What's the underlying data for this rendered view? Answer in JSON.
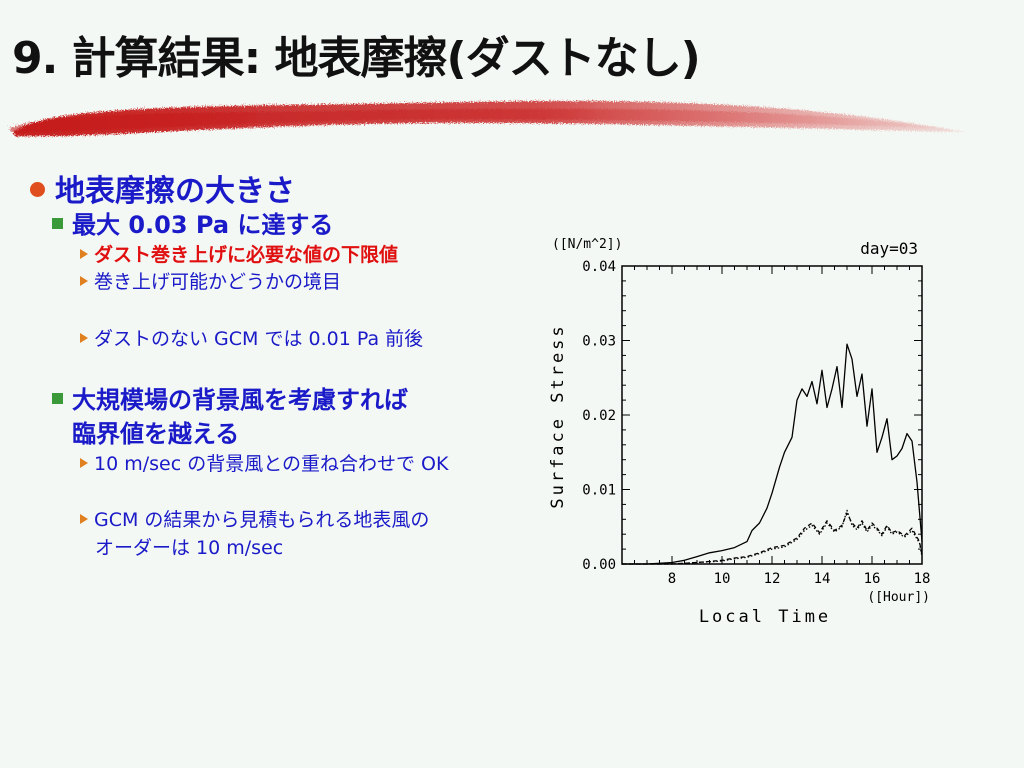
{
  "title": "9. 計算結果: 地表摩擦(ダストなし)",
  "bullets": {
    "main": "地表摩擦の大きさ",
    "sub1": "最大 0.03 Pa に達する",
    "sub1_items": [
      "ダスト巻き上げに必要な値の下限値",
      "巻き上げ可能かどうかの境目",
      "ダストのない GCM では 0.01 Pa 前後"
    ],
    "sub2_line1": "大規模場の背景風を考慮すれば",
    "sub2_line2": "臨界値を越える",
    "sub2_items": [
      "10 m/sec の背景風との重ね合わせで OK",
      "GCM の結果から見積もられる地表風の",
      "オーダーは 10 m/sec"
    ]
  },
  "colors": {
    "title": "#111111",
    "brush": "#c41818",
    "bullet_text": "#1a1ac8",
    "highlight": "#e01010",
    "dot": "#e04d1e",
    "square": "#3a9a3a",
    "triangle": "#e08020"
  },
  "chart_data": {
    "type": "line",
    "xlabel": "Local Time",
    "xunit": "([Hour])",
    "ylabel": "Surface Stress",
    "yunit": "([N/m^2])",
    "annotation": "day=03",
    "xlim": [
      6,
      18
    ],
    "ylim": [
      0,
      0.04
    ],
    "xticks": [
      "8",
      "10",
      "12",
      "14",
      "16",
      "18"
    ],
    "yticks": [
      "0.00",
      "0.01",
      "0.02",
      "0.03",
      "0.04"
    ],
    "series": [
      {
        "style": "solid",
        "x": [
          6,
          7,
          7.5,
          8,
          8.5,
          9,
          9.5,
          10,
          10.5,
          11,
          11.2,
          11.5,
          11.8,
          12,
          12.3,
          12.5,
          12.8,
          13,
          13.2,
          13.4,
          13.6,
          13.8,
          14,
          14.2,
          14.4,
          14.6,
          14.8,
          15,
          15.2,
          15.4,
          15.6,
          15.8,
          16,
          16.2,
          16.4,
          16.6,
          16.8,
          17,
          17.2,
          17.4,
          17.6,
          17.8,
          18
        ],
        "y": [
          0.0,
          0.0,
          0.0001,
          0.0002,
          0.0005,
          0.001,
          0.0015,
          0.0018,
          0.0022,
          0.003,
          0.0045,
          0.0055,
          0.0075,
          0.0095,
          0.013,
          0.015,
          0.017,
          0.022,
          0.0235,
          0.0225,
          0.0245,
          0.0215,
          0.026,
          0.021,
          0.0235,
          0.0265,
          0.021,
          0.0295,
          0.0275,
          0.0225,
          0.0255,
          0.0185,
          0.0235,
          0.015,
          0.017,
          0.0195,
          0.014,
          0.0145,
          0.0155,
          0.0175,
          0.0165,
          0.011,
          0.003
        ]
      },
      {
        "style": "dashed",
        "x": [
          6,
          8,
          9,
          10,
          10.5,
          11,
          11.5,
          12,
          12.5,
          13,
          13.3,
          13.6,
          13.9,
          14.2,
          14.5,
          14.8,
          15,
          15.2,
          15.4,
          15.6,
          15.8,
          16,
          16.2,
          16.4,
          16.6,
          16.8,
          17,
          17.3,
          17.6,
          17.9,
          18
        ],
        "y": [
          0.0,
          0.0,
          0.0002,
          0.0005,
          0.0008,
          0.001,
          0.0015,
          0.0022,
          0.0025,
          0.0035,
          0.0048,
          0.0055,
          0.0042,
          0.0058,
          0.0045,
          0.0052,
          0.0068,
          0.0055,
          0.0048,
          0.0058,
          0.0045,
          0.0055,
          0.0048,
          0.004,
          0.0052,
          0.0042,
          0.0045,
          0.0038,
          0.0048,
          0.003,
          0.0012
        ]
      },
      {
        "style": "dotted",
        "x": [
          6,
          8,
          9,
          10,
          10.5,
          11,
          11.5,
          12,
          12.5,
          13,
          13.3,
          13.6,
          13.9,
          14.2,
          14.5,
          14.8,
          15,
          15.2,
          15.4,
          15.6,
          15.8,
          16,
          16.2,
          16.4,
          16.6,
          16.8,
          17,
          17.3,
          17.6,
          17.9,
          18
        ],
        "y": [
          0.0,
          0.0,
          0.0002,
          0.0004,
          0.0007,
          0.0009,
          0.0014,
          0.002,
          0.0023,
          0.0033,
          0.0045,
          0.0052,
          0.004,
          0.0055,
          0.0043,
          0.005,
          0.0072,
          0.0052,
          0.0046,
          0.0055,
          0.0043,
          0.0052,
          0.0046,
          0.0038,
          0.005,
          0.004,
          0.0043,
          0.0036,
          0.0045,
          0.0028,
          0.001
        ]
      }
    ]
  }
}
